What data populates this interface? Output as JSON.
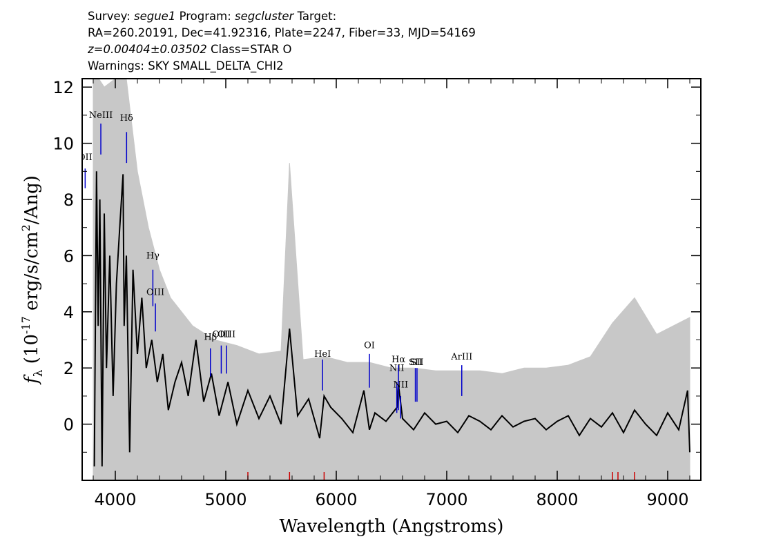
{
  "header": {
    "line1": {
      "survey_prefix": "Survey: ",
      "survey": "segue1",
      "program_prefix": " Program: ",
      "program": "segcluster",
      "target_prefix": " Target:"
    },
    "line2": "RA=260.20191, Dec=41.92316, Plate=2247, Fiber=33, MJD=54169",
    "line3": {
      "z": "z=0.00404±0.03502",
      "class": " Class=STAR O"
    },
    "line4": "Warnings: SKY SMALL_DELTA_CHI2"
  },
  "chart_data": {
    "type": "line",
    "xlabel": "Wavelength (Angstroms)",
    "ylabel_main": "f",
    "ylabel_sub": "λ",
    "ylabel_rest_a": " (10",
    "ylabel_exp1": "-17",
    "ylabel_rest_b": " erg/s/cm",
    "ylabel_exp2": "2",
    "ylabel_rest_c": "/Ang)",
    "xlim": [
      3700,
      9300
    ],
    "ylim": [
      -2,
      12.3
    ],
    "xticks": [
      4000,
      5000,
      6000,
      7000,
      8000,
      9000
    ],
    "xtick_labels": [
      "4000",
      "5000",
      "6000",
      "7000",
      "8000",
      "9000"
    ],
    "yticks": [
      0,
      2,
      4,
      6,
      8,
      10,
      12
    ],
    "ytick_labels": [
      "0",
      "2",
      "4",
      "6",
      "8",
      "10",
      "12"
    ],
    "colors": {
      "flux": "#000000",
      "error": "#c8c8c8",
      "emission_marker": "#0000cc",
      "sky_marker": "#cc0000"
    },
    "series": [
      {
        "role": "flux",
        "x": [
          3810,
          3830,
          3845,
          3860,
          3880,
          3900,
          3920,
          3950,
          3980,
          4010,
          4040,
          4070,
          4080,
          4100,
          4130,
          4160,
          4200,
          4240,
          4280,
          4330,
          4380,
          4430,
          4480,
          4540,
          4600,
          4660,
          4730,
          4800,
          4870,
          4940,
          5020,
          5100,
          5200,
          5300,
          5400,
          5500,
          5577,
          5650,
          5750,
          5850,
          5890,
          5950,
          6050,
          6150,
          6250,
          6300,
          6350,
          6450,
          6550,
          6563,
          6600,
          6700,
          6800,
          6900,
          7000,
          7100,
          7200,
          7300,
          7400,
          7500,
          7600,
          7700,
          7800,
          7900,
          8000,
          8100,
          8200,
          8300,
          8400,
          8500,
          8600,
          8700,
          8800,
          8900,
          9000,
          9100,
          9180,
          9200
        ],
        "y": [
          -1.5,
          9.0,
          3.5,
          8.0,
          -1.5,
          7.5,
          2.0,
          6.0,
          1.0,
          5.0,
          7.0,
          8.9,
          3.5,
          6.0,
          -1.0,
          5.5,
          2.5,
          4.5,
          2.0,
          3.0,
          1.5,
          2.5,
          0.5,
          1.5,
          2.2,
          1.0,
          3.0,
          0.8,
          1.8,
          0.3,
          1.5,
          0.0,
          1.2,
          0.2,
          1.0,
          0.0,
          3.4,
          0.3,
          0.9,
          -0.5,
          1.0,
          0.6,
          0.2,
          -0.3,
          1.2,
          -0.2,
          0.4,
          0.1,
          0.6,
          1.4,
          0.2,
          -0.2,
          0.4,
          0.0,
          0.1,
          -0.3,
          0.3,
          0.1,
          -0.2,
          0.3,
          -0.1,
          0.1,
          0.2,
          -0.2,
          0.1,
          0.3,
          -0.4,
          0.2,
          -0.1,
          0.4,
          -0.3,
          0.5,
          0.0,
          -0.4,
          0.4,
          -0.2,
          1.2,
          -1.0
        ]
      },
      {
        "role": "error",
        "x": [
          3800,
          3850,
          3900,
          4000,
          4100,
          4200,
          4300,
          4400,
          4500,
          4700,
          4900,
          5100,
          5300,
          5500,
          5577,
          5700,
          5900,
          6100,
          6300,
          6500,
          6700,
          6900,
          7100,
          7300,
          7500,
          7700,
          7900,
          8100,
          8300,
          8500,
          8700,
          8900,
          9100,
          9200
        ],
        "y": [
          12.3,
          12.3,
          12.0,
          12.3,
          12.3,
          9.0,
          7.0,
          5.5,
          4.5,
          3.5,
          3.0,
          2.8,
          2.5,
          2.6,
          9.3,
          2.3,
          2.4,
          2.2,
          2.2,
          2.0,
          2.0,
          1.9,
          1.9,
          1.9,
          1.8,
          2.0,
          2.0,
          2.1,
          2.4,
          3.6,
          4.5,
          3.2,
          3.6,
          3.8
        ]
      }
    ],
    "annotations": [
      {
        "label": "OII",
        "x": 3727,
        "label_y": 9.4,
        "line_y": [
          8.4,
          9.1
        ]
      },
      {
        "label": "NeIII",
        "x": 3869,
        "label_y": 10.9,
        "line_y": [
          9.6,
          10.7
        ]
      },
      {
        "label": "Hδ",
        "x": 4102,
        "label_y": 10.8,
        "line_y": [
          9.3,
          10.4
        ]
      },
      {
        "label": "Hγ",
        "x": 4340,
        "label_y": 5.9,
        "line_y": [
          4.2,
          5.5
        ]
      },
      {
        "label": "OIII",
        "x": 4363,
        "label_y": 4.6,
        "line_y": [
          3.3,
          4.3
        ]
      },
      {
        "label": "Hβ",
        "x": 4861,
        "label_y": 3.0,
        "line_y": [
          1.7,
          2.7
        ]
      },
      {
        "label": "OIII",
        "x": 4959,
        "label_y": 3.1,
        "line_y": [
          1.8,
          2.8
        ]
      },
      {
        "label": "OIII",
        "x": 5007,
        "label_y": 3.1,
        "line_y": [
          1.8,
          2.8
        ]
      },
      {
        "label": "HeI",
        "x": 5876,
        "label_y": 2.4,
        "line_y": [
          1.2,
          2.3
        ]
      },
      {
        "label": "OI",
        "x": 6300,
        "label_y": 2.7,
        "line_y": [
          1.3,
          2.5
        ]
      },
      {
        "label": "NII",
        "x": 6548,
        "label_y": 1.9,
        "line_y": [
          0.4,
          1.5
        ]
      },
      {
        "label": "Hα",
        "x": 6563,
        "label_y": 2.2,
        "line_y": [
          0.5,
          2.1
        ]
      },
      {
        "label": "NII",
        "x": 6583,
        "label_y": 1.3,
        "line_y": [
          0.2,
          1.0
        ]
      },
      {
        "label": "SII",
        "x": 6716,
        "label_y": 2.1,
        "line_y": [
          0.8,
          2.0
        ]
      },
      {
        "label": "SII",
        "x": 6731,
        "label_y": 2.1,
        "line_y": [
          0.8,
          2.0
        ]
      },
      {
        "label": "ArIII",
        "x": 7136,
        "label_y": 2.3,
        "line_y": [
          1.0,
          2.1
        ]
      }
    ],
    "sky_markers": [
      5200,
      5577,
      5890,
      8500,
      8550,
      8700
    ]
  }
}
